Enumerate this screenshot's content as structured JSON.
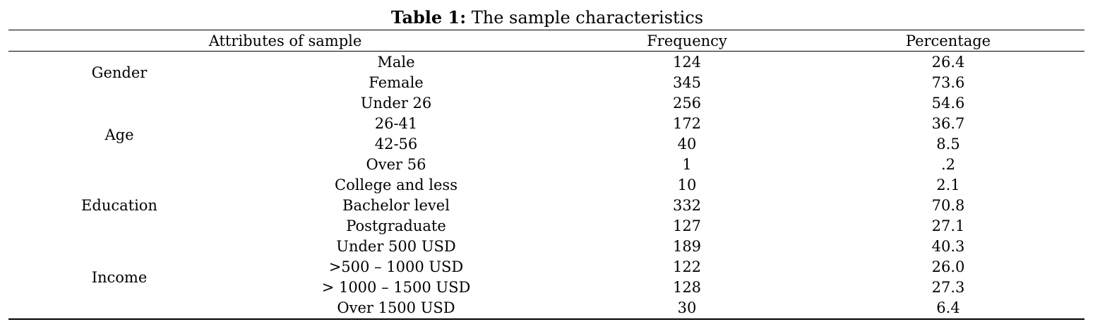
{
  "caption": {
    "label": "Table 1:",
    "text": " The sample characteristics"
  },
  "header": {
    "attributes": "Attributes of sample",
    "frequency": "Frequency",
    "percentage": "Percentage"
  },
  "groups": [
    {
      "name": "Gender"
    },
    {
      "name": "Age"
    },
    {
      "name": "Education"
    },
    {
      "name": "Income"
    }
  ],
  "rows": [
    {
      "category": "Male",
      "frequency": "124",
      "percentage": "26.4"
    },
    {
      "category": "Female",
      "frequency": "345",
      "percentage": "73.6"
    },
    {
      "category": "Under 26",
      "frequency": "256",
      "percentage": "54.6"
    },
    {
      "category": "26-41",
      "frequency": "172",
      "percentage": "36.7"
    },
    {
      "category": "42-56",
      "frequency": "40",
      "percentage": "8.5"
    },
    {
      "category": "Over 56",
      "frequency": "1",
      "percentage": ".2"
    },
    {
      "category": "College and less",
      "frequency": "10",
      "percentage": "2.1"
    },
    {
      "category": "Bachelor level",
      "frequency": "332",
      "percentage": "70.8"
    },
    {
      "category": "Postgraduate",
      "frequency": "127",
      "percentage": "27.1"
    },
    {
      "category": "Under 500 USD",
      "frequency": "189",
      "percentage": "40.3"
    },
    {
      "category": ">500 – 1000 USD",
      "frequency": "122",
      "percentage": "26.0"
    },
    {
      "category": "> 1000 – 1500 USD",
      "frequency": "128",
      "percentage": "27.3"
    },
    {
      "category": "Over 1500 USD",
      "frequency": "30",
      "percentage": "6.4"
    }
  ]
}
